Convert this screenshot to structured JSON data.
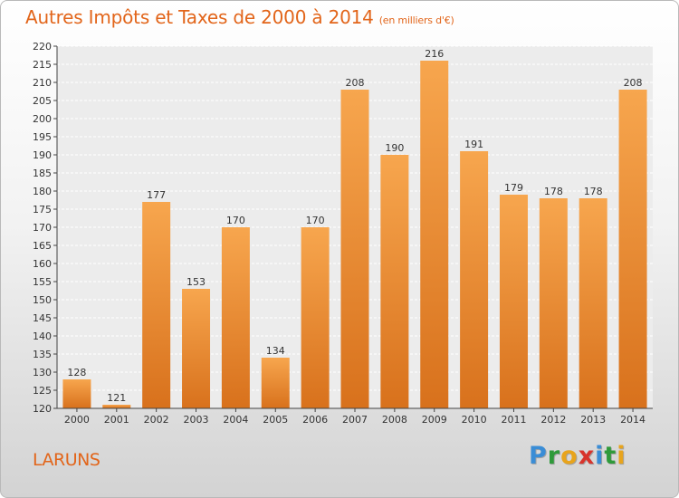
{
  "title": "Autres Impôts et Taxes de 2000 à 2014",
  "unit_label": "(en milliers d'€)",
  "city": "LARUNS",
  "logo": {
    "letters": [
      "P",
      "r",
      "o",
      "x",
      "i",
      "t",
      "i"
    ],
    "colors": [
      "#3a8dd6",
      "#2f9a3a",
      "#e8a41c",
      "#d8342c",
      "#3a8dd6",
      "#2f9a3a",
      "#e8a41c"
    ]
  },
  "colors": {
    "bar_top": "#f7a64e",
    "bar_bottom": "#d8711c",
    "title": "#e2651a"
  },
  "chart_data": {
    "type": "bar",
    "categories": [
      "2000",
      "2001",
      "2002",
      "2003",
      "2004",
      "2005",
      "2006",
      "2007",
      "2008",
      "2009",
      "2010",
      "2011",
      "2012",
      "2013",
      "2014"
    ],
    "values": [
      128,
      121,
      177,
      153,
      170,
      134,
      170,
      208,
      190,
      216,
      191,
      179,
      178,
      178,
      208
    ],
    "ylim": [
      120,
      220
    ],
    "yticks": [
      120,
      125,
      130,
      135,
      140,
      145,
      150,
      155,
      160,
      165,
      170,
      175,
      180,
      185,
      190,
      195,
      200,
      205,
      210,
      215,
      220
    ],
    "grid": true
  }
}
